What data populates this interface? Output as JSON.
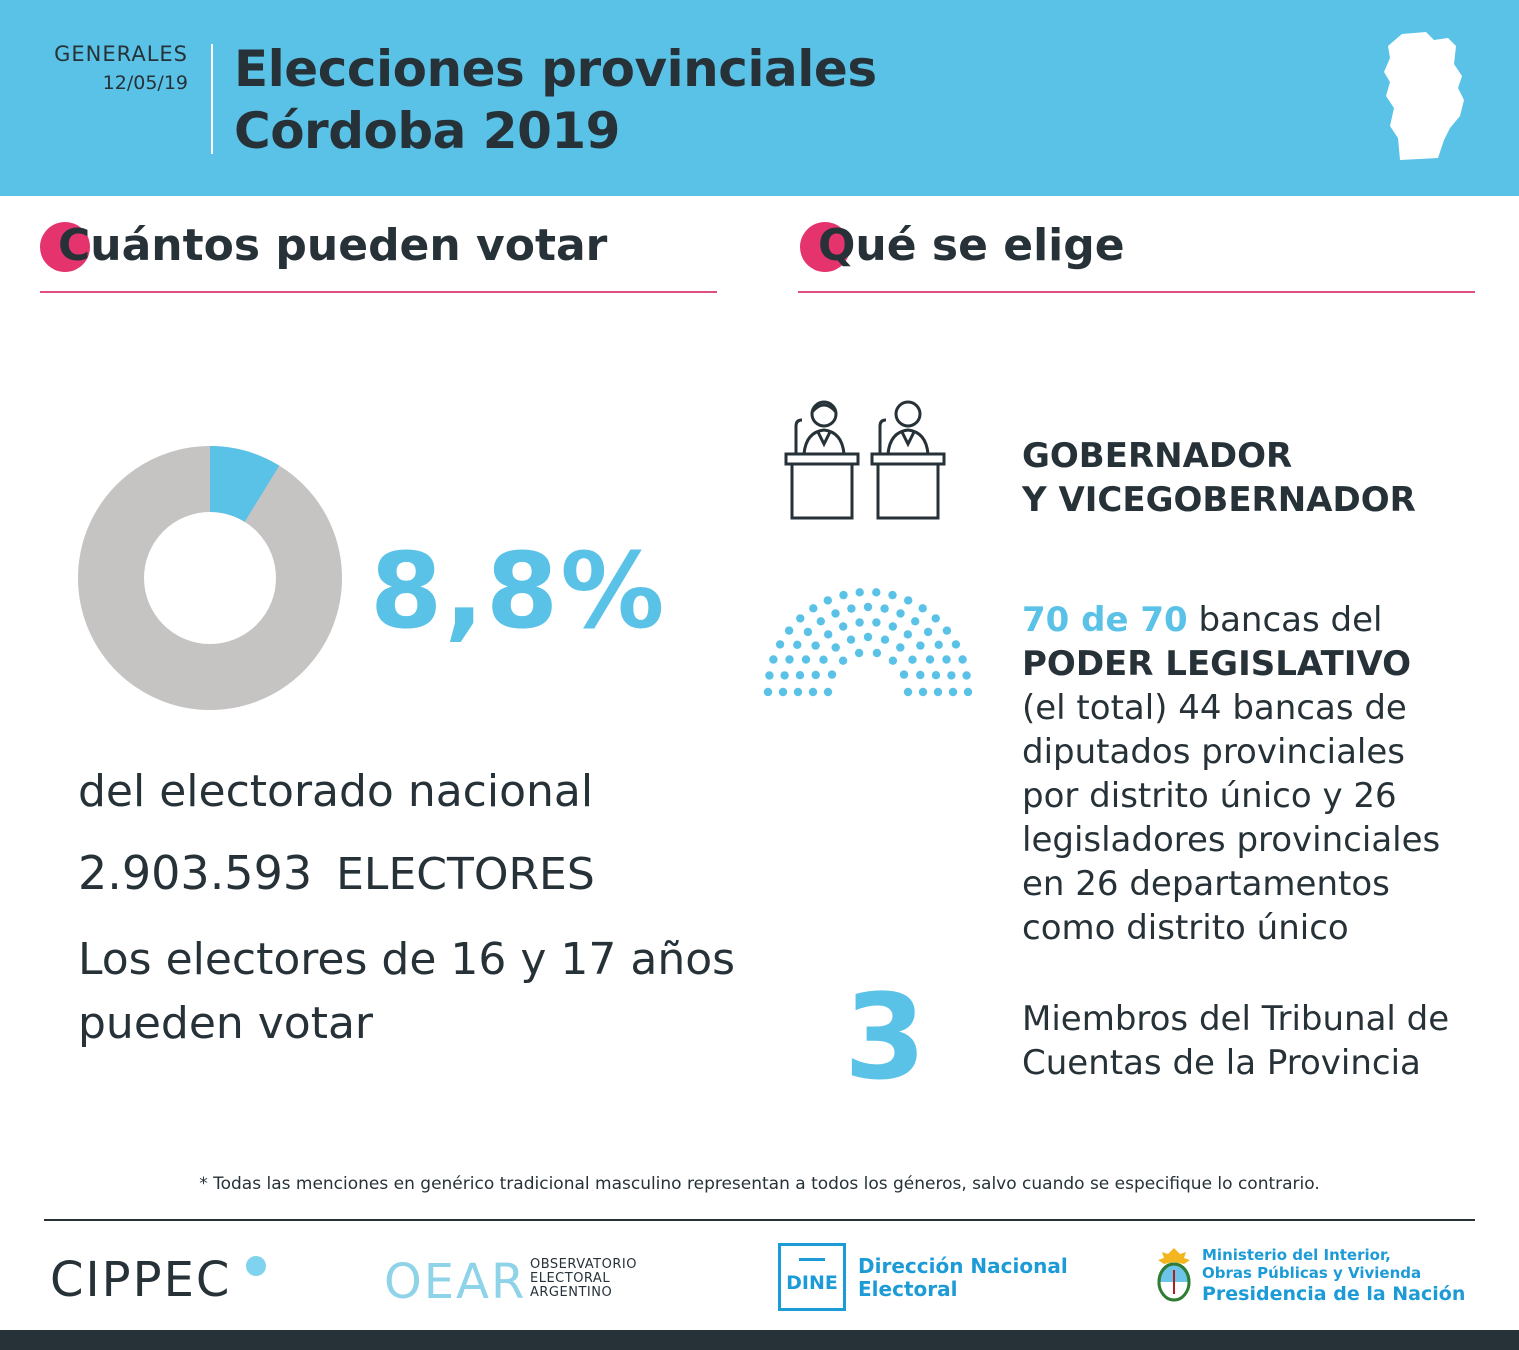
{
  "header": {
    "election_type": "GENERALES",
    "date": "12/05/19",
    "title_line1": "Elecciones provinciales",
    "title_line2": "Córdoba 2019",
    "map_icon": "cordoba-province-map-icon"
  },
  "left": {
    "heading": "Cuántos pueden votar",
    "percentage": "8,8%",
    "percentage_value": 8.8,
    "subtitle": "del electorado nacional",
    "electors_number": "2.903.593",
    "electors_label": "ELECTORES",
    "youth_line1": "Los electores de 16 y 17 años",
    "youth_line2": "pueden votar"
  },
  "right": {
    "heading": "Qué se elige",
    "governor_line1": "GOBERNADOR",
    "governor_line2": "Y VICEGOBERNADOR",
    "legislative_count": "70 de 70",
    "legislative_suffix": " bancas del",
    "legislative_line2": "PODER LEGISLATIVO",
    "legislative_line3": "(el total) 44 bancas de",
    "legislative_line4": "diputados provinciales",
    "legislative_line5": "por distrito único y 26",
    "legislative_line6": "legisladores provinciales",
    "legislative_line7": "en 26 departamentos",
    "legislative_line8": "como distrito único",
    "tribunal_count": "3",
    "tribunal_line1": "Miembros del Tribunal de",
    "tribunal_line2": "Cuentas de la Provincia"
  },
  "footer": {
    "note": "* Todas las menciones en genérico tradicional masculino representan a todos los géneros, salvo cuando se especifique lo contrario.",
    "cippec": "CIPPEC",
    "oear": "OEAR",
    "oear_sub1": "OBSERVATORIO",
    "oear_sub2": "ELECTORAL",
    "oear_sub3": "ARGENTINO",
    "dine_abbr": "DINE",
    "dine_line1": "Dirección Nacional",
    "dine_line2": "Electoral",
    "ministry_line1": "Ministerio del Interior,",
    "ministry_line2": "Obras Públicas y Vivienda",
    "presidency": "Presidencia de la Nación"
  },
  "colors": {
    "header_bg": "#5bc2e7",
    "accent_blue": "#5bc2e7",
    "accent_pink": "#e5336e",
    "donut_gray": "#c6c3c3",
    "text_dark": "#263238"
  }
}
